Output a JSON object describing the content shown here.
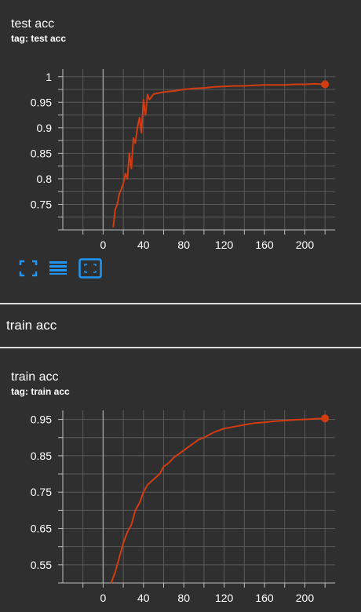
{
  "colors": {
    "background": "#2f2f2f",
    "series": "#d13c12",
    "grid": "#5a5a5a",
    "axis": "#bfbfbf",
    "accent": "#2196f3"
  },
  "cards": [
    {
      "title": "test acc",
      "tag": "tag: test acc"
    },
    {
      "title": "train acc",
      "tag": "tag: train acc"
    }
  ],
  "section": {
    "label": "train acc"
  },
  "toolbar": {
    "icons": [
      "fullscreen-icon",
      "toggle-log-scale-icon",
      "fit-domain-icon"
    ]
  },
  "chart_data": [
    {
      "type": "line",
      "title": "test acc",
      "xlim": [
        -40,
        230
      ],
      "ylim": [
        0.7,
        1.015
      ],
      "x_ticks": [
        0,
        40,
        80,
        120,
        160,
        200
      ],
      "y_ticks": [
        0.75,
        0.8,
        0.85,
        0.9,
        0.95,
        1
      ],
      "y_tick_labels": [
        "0.75",
        "0.8",
        "0.85",
        "0.9",
        "0.95",
        "1"
      ],
      "series": [
        {
          "x": [
            10,
            12,
            14,
            16,
            18,
            20,
            22,
            24,
            26,
            28,
            30,
            32,
            34,
            36,
            38,
            40,
            42,
            44,
            46,
            50,
            55,
            60,
            70,
            80,
            90,
            100,
            110,
            120,
            130,
            140,
            150,
            160,
            170,
            180,
            190,
            200,
            210,
            220
          ],
          "y": [
            0.705,
            0.74,
            0.75,
            0.77,
            0.78,
            0.79,
            0.81,
            0.8,
            0.85,
            0.82,
            0.88,
            0.87,
            0.9,
            0.92,
            0.89,
            0.955,
            0.925,
            0.965,
            0.955,
            0.966,
            0.968,
            0.97,
            0.972,
            0.975,
            0.977,
            0.978,
            0.98,
            0.981,
            0.982,
            0.982,
            0.983,
            0.984,
            0.984,
            0.984,
            0.985,
            0.985,
            0.986,
            0.985
          ]
        }
      ],
      "grid": true
    },
    {
      "type": "line",
      "title": "train acc",
      "xlim": [
        -40,
        230
      ],
      "ylim": [
        0.5,
        0.975
      ],
      "x_ticks": [
        0,
        40,
        80,
        120,
        160,
        200
      ],
      "y_ticks": [
        0.55,
        0.65,
        0.75,
        0.85,
        0.95
      ],
      "y_tick_labels": [
        "0.55",
        "0.65",
        "0.75",
        "0.85",
        "0.95"
      ],
      "series": [
        {
          "x": [
            8,
            12,
            16,
            20,
            24,
            28,
            32,
            36,
            40,
            44,
            48,
            52,
            56,
            60,
            65,
            70,
            75,
            80,
            85,
            90,
            95,
            100,
            110,
            120,
            130,
            140,
            150,
            160,
            170,
            180,
            190,
            200,
            210,
            220
          ],
          "y": [
            0.5,
            0.53,
            0.57,
            0.61,
            0.64,
            0.66,
            0.7,
            0.72,
            0.75,
            0.77,
            0.78,
            0.79,
            0.8,
            0.82,
            0.83,
            0.845,
            0.855,
            0.865,
            0.875,
            0.885,
            0.895,
            0.9,
            0.915,
            0.925,
            0.93,
            0.935,
            0.94,
            0.942,
            0.945,
            0.947,
            0.949,
            0.95,
            0.952,
            0.953
          ]
        }
      ],
      "grid": true
    }
  ]
}
